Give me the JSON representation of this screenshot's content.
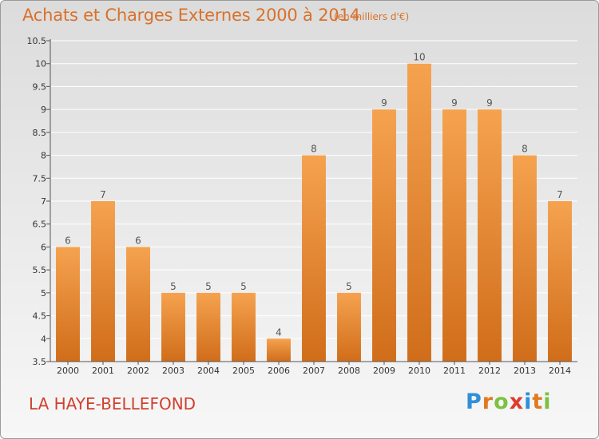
{
  "header": {
    "title": "Achats et Charges Externes 2000 à 2014",
    "subtitle": "(en milliers d'€)"
  },
  "footer": {
    "commune": "LA HAYE-BELLEFOND",
    "logo_text": "Proxiti",
    "logo_letters": [
      {
        "ch": "P",
        "color": "#2f8fd8"
      },
      {
        "ch": "r",
        "color": "#e07a1f"
      },
      {
        "ch": "o",
        "color": "#7cc242"
      },
      {
        "ch": "x",
        "color": "#e03a2e"
      },
      {
        "ch": "i",
        "color": "#2f8fd8"
      },
      {
        "ch": "t",
        "color": "#e07a1f"
      },
      {
        "ch": "i",
        "color": "#7cc242"
      }
    ]
  },
  "colors": {
    "bar_top": "#f5a24f",
    "bar_bottom": "#d06d1a",
    "title": "#d9712b",
    "commune": "#d13f2e",
    "grid": "#ffffff"
  },
  "chart_data": {
    "type": "bar",
    "title": "Achats et Charges Externes 2000 à 2014",
    "subtitle": "(en milliers d'€)",
    "categories": [
      "2000",
      "2001",
      "2002",
      "2003",
      "2004",
      "2005",
      "2006",
      "2007",
      "2008",
      "2009",
      "2010",
      "2011",
      "2012",
      "2013",
      "2014"
    ],
    "values": [
      6,
      7,
      6,
      5,
      5,
      5,
      4,
      8,
      5,
      9,
      10,
      9,
      9,
      8,
      7
    ],
    "ylim": [
      3.5,
      10.5
    ],
    "yticks": [
      3.5,
      4,
      4.5,
      5,
      5.5,
      6,
      6.5,
      7,
      7.5,
      8,
      8.5,
      9,
      9.5,
      10,
      10.5
    ],
    "xlabel": "",
    "ylabel": "",
    "grid": true
  }
}
